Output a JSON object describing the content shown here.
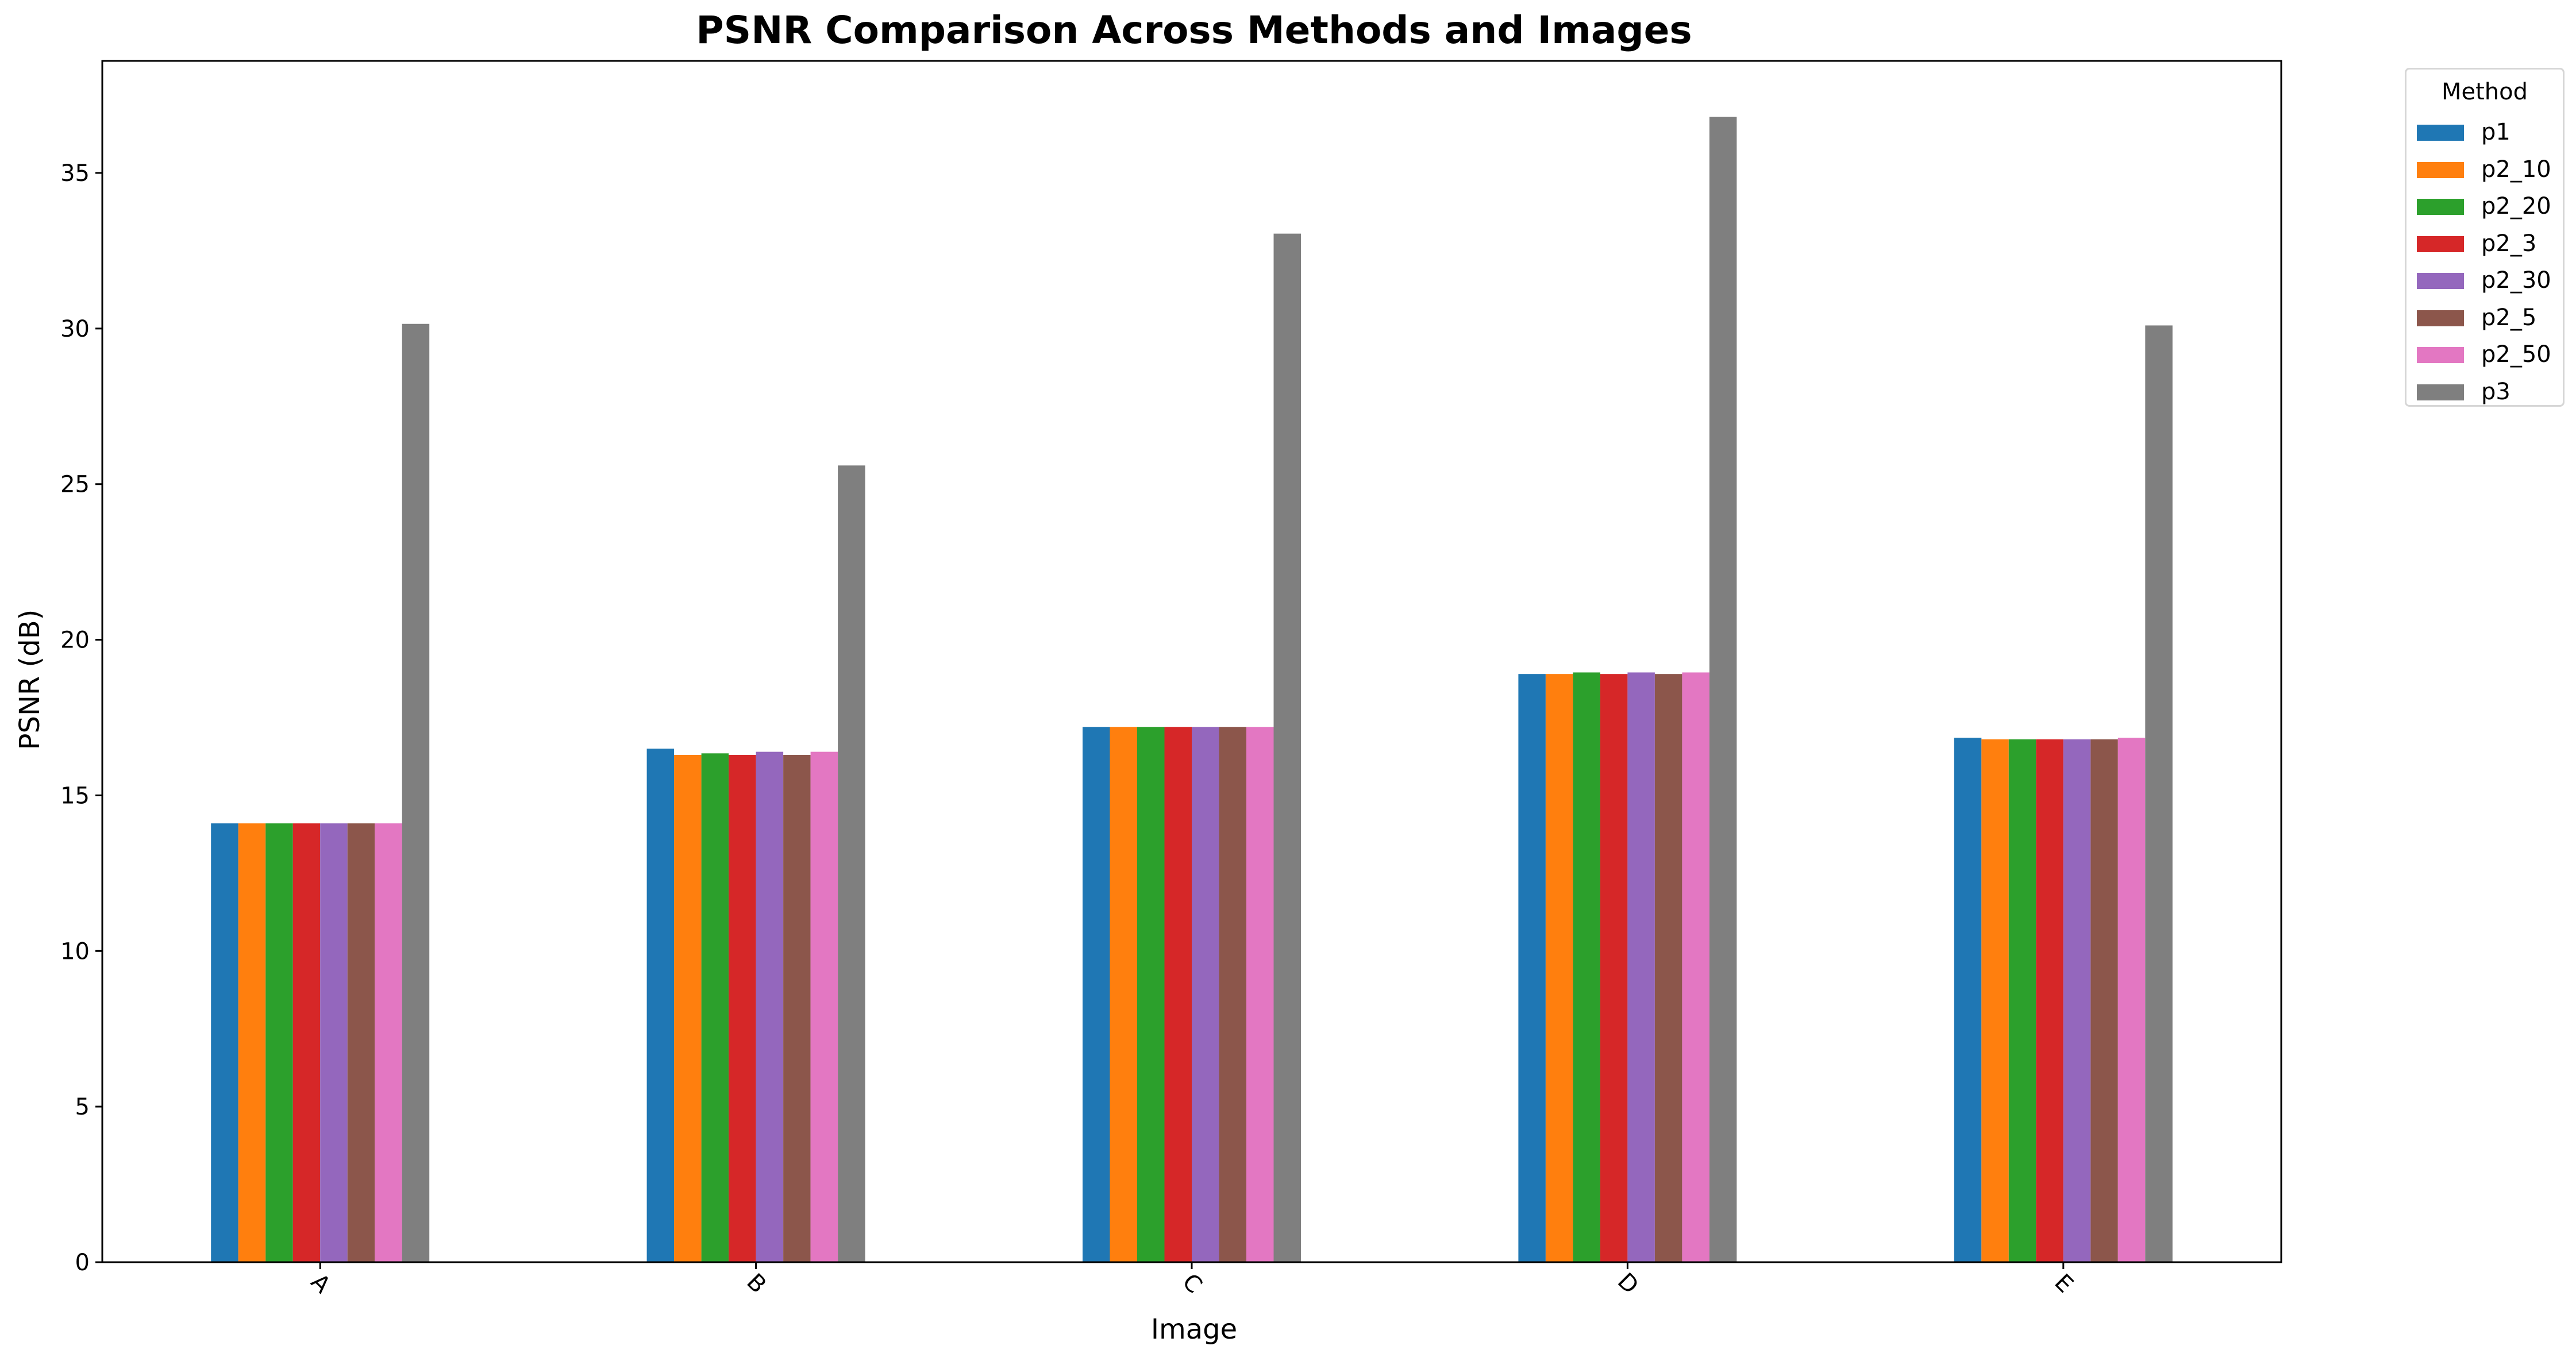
{
  "chart_data": {
    "type": "bar",
    "title": "PSNR Comparison Across Methods and Images",
    "xlabel": "Image",
    "ylabel": "PSNR (dB)",
    "categories": [
      "A",
      "B",
      "C",
      "D",
      "E"
    ],
    "ylim": [
      0,
      38.6
    ],
    "yticks": [
      0,
      5,
      10,
      15,
      20,
      25,
      30,
      35
    ],
    "grid": false,
    "legend": {
      "title": "Method",
      "placement": "outside-top-right"
    },
    "series": [
      {
        "name": "p1",
        "color": "#1f77b4",
        "values": [
          14.1,
          16.5,
          17.2,
          18.9,
          16.85
        ]
      },
      {
        "name": "p2_10",
        "color": "#ff7f0e",
        "values": [
          14.1,
          16.3,
          17.2,
          18.9,
          16.8
        ]
      },
      {
        "name": "p2_20",
        "color": "#2ca02c",
        "values": [
          14.1,
          16.35,
          17.2,
          18.95,
          16.8
        ]
      },
      {
        "name": "p2_3",
        "color": "#d62728",
        "values": [
          14.1,
          16.3,
          17.2,
          18.9,
          16.8
        ]
      },
      {
        "name": "p2_30",
        "color": "#9467bd",
        "values": [
          14.1,
          16.4,
          17.2,
          18.95,
          16.8
        ]
      },
      {
        "name": "p2_5",
        "color": "#8c564b",
        "values": [
          14.1,
          16.3,
          17.2,
          18.9,
          16.8
        ]
      },
      {
        "name": "p2_50",
        "color": "#e377c2",
        "values": [
          14.1,
          16.4,
          17.2,
          18.95,
          16.85
        ]
      },
      {
        "name": "p3",
        "color": "#7f7f7f",
        "values": [
          30.15,
          25.6,
          33.05,
          36.8,
          30.1
        ]
      }
    ]
  }
}
